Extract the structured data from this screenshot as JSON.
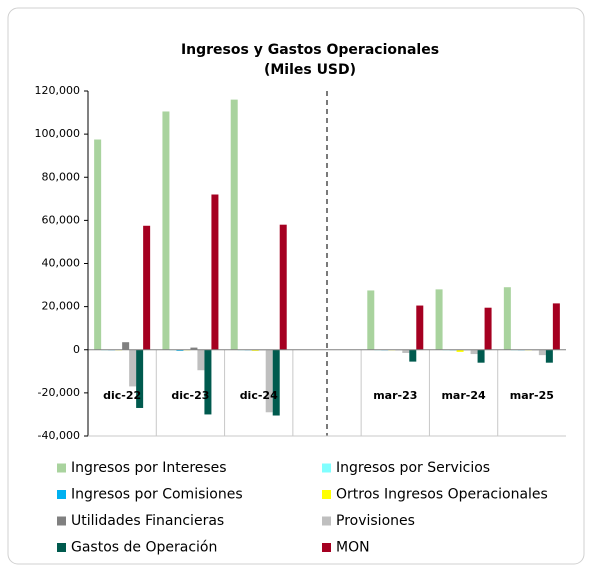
{
  "chart_data": {
    "type": "bar",
    "title": "Ingresos y Gastos Operacionales",
    "subtitle": "(Miles USD)",
    "categories": [
      "dic-22",
      "dic-23",
      "dic-24",
      null,
      "mar-23",
      "mar-24",
      "mar-25"
    ],
    "series": [
      {
        "name": "Ingresos por Intereses",
        "color": "#a9d39e",
        "values": [
          97500,
          110500,
          116000,
          null,
          27500,
          28000,
          29000
        ]
      },
      {
        "name": "Ingresos por Servicios",
        "color": "#80ffff",
        "values": [
          0,
          0,
          0,
          null,
          0,
          0,
          0
        ]
      },
      {
        "name": "Ingresos por Comisiones",
        "color": "#00b0f0",
        "values": [
          0,
          -500,
          0,
          null,
          0,
          0,
          0
        ]
      },
      {
        "name": "Ortros Ingresos Operacionales",
        "color": "#ffff00",
        "values": [
          0,
          0,
          -500,
          null,
          0,
          -1000,
          0
        ]
      },
      {
        "name": "Utilidades Financieras",
        "color": "#808080",
        "values": [
          3500,
          1000,
          0,
          null,
          0,
          0,
          0
        ]
      },
      {
        "name": "Provisiones",
        "color": "#bfbfbf",
        "values": [
          -17000,
          -9500,
          -29000,
          null,
          -1500,
          -2000,
          -2500
        ]
      },
      {
        "name": "Gastos de Operación",
        "color": "#005a4e",
        "values": [
          -27000,
          -30000,
          -30500,
          null,
          -5500,
          -6000,
          -6000
        ]
      },
      {
        "name": "MON",
        "color": "#a50021",
        "values": [
          57500,
          72000,
          58000,
          null,
          20500,
          19500,
          21500
        ]
      }
    ],
    "ylim": [
      -40000,
      120000
    ],
    "yticks": [
      {
        "value": -40000,
        "label": "-40,000"
      },
      {
        "value": -20000,
        "label": "-20,000"
      },
      0,
      {
        "value": 20000,
        "label": "20,000"
      },
      {
        "value": 40000,
        "label": "40,000"
      },
      {
        "value": 60000,
        "label": "60,000"
      },
      {
        "value": 80000,
        "label": "80,000"
      },
      {
        "value": 100000,
        "label": "100,000"
      },
      {
        "value": 120000,
        "label": "120,000"
      }
    ]
  }
}
